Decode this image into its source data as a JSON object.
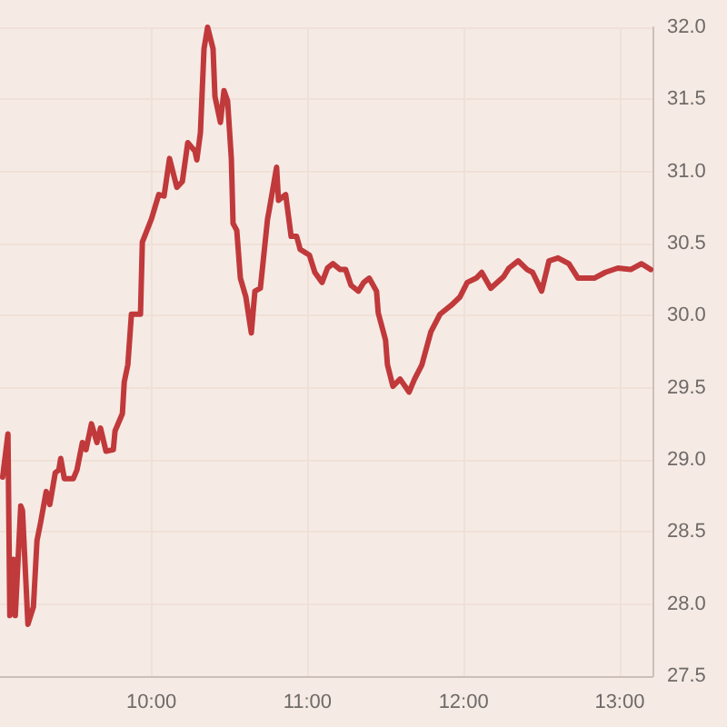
{
  "chart_data": {
    "type": "line",
    "color": "#c0393b",
    "x": [
      9.047,
      9.081,
      9.093,
      9.116,
      9.128,
      9.163,
      9.174,
      9.209,
      9.244,
      9.267,
      9.291,
      9.326,
      9.349,
      9.384,
      9.407,
      9.419,
      9.442,
      9.5,
      9.523,
      9.558,
      9.581,
      9.616,
      9.651,
      9.674,
      9.709,
      9.756,
      9.767,
      9.814,
      9.826,
      9.849,
      9.872,
      9.93,
      9.942,
      10.0,
      10.047,
      10.081,
      10.116,
      10.163,
      10.198,
      10.233,
      10.279,
      10.291,
      10.314,
      10.337,
      10.36,
      10.395,
      10.407,
      10.442,
      10.465,
      10.488,
      10.512,
      10.523,
      10.547,
      10.57,
      10.605,
      10.64,
      10.663,
      10.698,
      10.744,
      10.756,
      10.802,
      10.814,
      10.86,
      10.895,
      10.93,
      10.953,
      11.012,
      11.047,
      11.093,
      11.128,
      11.163,
      11.209,
      11.244,
      11.279,
      11.326,
      11.36,
      11.395,
      11.442,
      11.453,
      11.5,
      11.512,
      11.547,
      11.593,
      11.651,
      11.686,
      11.733,
      11.791,
      11.849,
      11.919,
      11.977,
      12.023,
      12.081,
      12.116,
      12.174,
      12.256,
      12.291,
      12.349,
      12.407,
      12.442,
      12.5,
      12.547,
      12.605,
      12.674,
      12.733,
      12.837,
      12.907,
      12.988,
      13.07,
      13.14,
      13.198
    ],
    "values": [
      28.88,
      29.18,
      27.92,
      28.31,
      27.92,
      28.68,
      28.65,
      27.86,
      27.98,
      28.44,
      28.57,
      28.78,
      28.69,
      28.91,
      28.93,
      29.01,
      28.87,
      28.87,
      28.93,
      29.12,
      29.07,
      29.25,
      29.12,
      29.22,
      29.06,
      29.07,
      29.2,
      29.32,
      29.54,
      29.66,
      30.01,
      30.01,
      30.51,
      30.67,
      30.84,
      30.83,
      31.09,
      30.89,
      30.93,
      31.2,
      31.14,
      31.08,
      31.27,
      31.85,
      32.0,
      31.85,
      31.52,
      31.34,
      31.56,
      31.49,
      31.09,
      30.64,
      30.59,
      30.26,
      30.13,
      29.88,
      30.17,
      30.19,
      30.67,
      30.74,
      31.03,
      30.8,
      30.84,
      30.55,
      30.55,
      30.46,
      30.42,
      30.3,
      30.23,
      30.33,
      30.36,
      30.32,
      30.32,
      30.21,
      30.17,
      30.23,
      30.26,
      30.17,
      30.02,
      29.83,
      29.66,
      29.51,
      29.56,
      29.47,
      29.56,
      29.66,
      29.89,
      30.01,
      30.07,
      30.13,
      30.23,
      30.26,
      30.3,
      30.19,
      30.27,
      30.33,
      30.38,
      30.32,
      30.3,
      30.17,
      30.38,
      30.4,
      30.36,
      30.26,
      30.26,
      30.3,
      30.33,
      30.32,
      30.36,
      30.32
    ],
    "xlim": [
      9.03,
      13.21
    ],
    "xticks": [
      {
        "value": 10,
        "label": "10:00"
      },
      {
        "value": 11,
        "label": "11:00"
      },
      {
        "value": 12,
        "label": "12:00"
      },
      {
        "value": 13,
        "label": "13:00"
      }
    ],
    "ylim": [
      27.5,
      32
    ],
    "yticks": [
      27.5,
      {
        "value": 28,
        "label": "28.0"
      },
      28.5,
      {
        "value": 29,
        "label": "29.0"
      },
      29.5,
      {
        "value": 30,
        "label": "30.0"
      },
      30.5,
      {
        "value": 31,
        "label": "31.0"
      },
      31.5,
      {
        "value": 32,
        "label": "32.0"
      }
    ],
    "grid": true
  }
}
